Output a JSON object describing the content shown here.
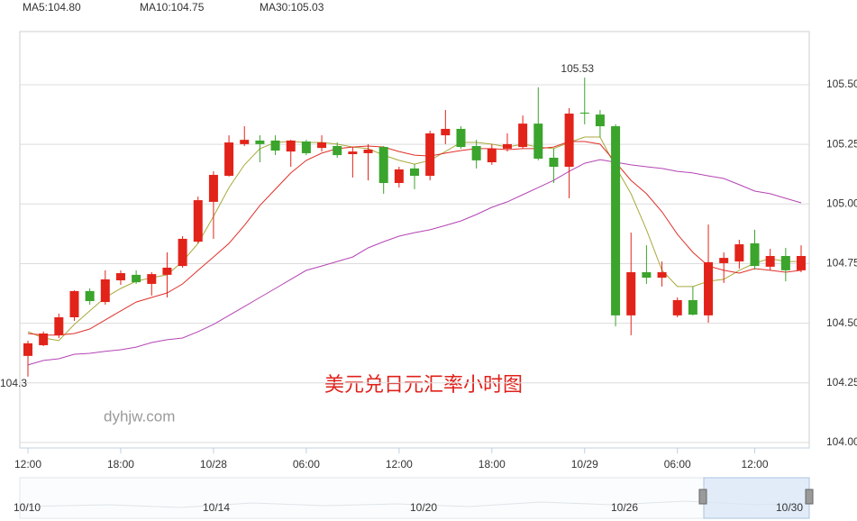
{
  "chart_data": {
    "type": "candlestick",
    "title": "美元兑日元汇率小时图",
    "watermark": "dyhjw.com",
    "up_color": "#e2231a",
    "down_color": "#3ba42c",
    "categories": [
      "12:00",
      null,
      null,
      null,
      null,
      null,
      "18:00",
      null,
      null,
      null,
      null,
      null,
      "10/28",
      null,
      null,
      null,
      null,
      null,
      "06:00",
      null,
      null,
      null,
      null,
      null,
      "12:00",
      null,
      null,
      null,
      null,
      null,
      "18:00",
      null,
      null,
      null,
      null,
      null,
      "10/29",
      null,
      null,
      null,
      null,
      null,
      "06:00",
      null,
      null,
      null,
      null,
      "12:00",
      null,
      null,
      null
    ],
    "open": [
      104.363,
      104.408,
      104.45,
      104.525,
      104.635,
      104.589,
      104.68,
      104.703,
      104.665,
      104.703,
      104.74,
      104.842,
      105.009,
      105.118,
      105.251,
      105.266,
      105.266,
      105.22,
      105.262,
      105.235,
      105.243,
      105.209,
      105.213,
      105.239,
      105.088,
      105.149,
      105.118,
      105.288,
      105.315,
      105.243,
      105.175,
      105.232,
      105.239,
      105.337,
      105.194,
      105.156,
      105.383,
      105.375,
      105.326,
      104.533,
      104.714,
      104.691,
      104.533,
      104.597,
      104.533,
      104.752,
      104.759,
      104.835,
      104.737,
      104.782,
      104.722
    ],
    "close": [
      104.416,
      104.457,
      104.525,
      104.635,
      104.593,
      104.684,
      104.71,
      104.672,
      104.706,
      104.733,
      104.854,
      105.016,
      105.122,
      105.258,
      105.269,
      105.251,
      105.224,
      105.266,
      105.213,
      105.258,
      105.205,
      105.22,
      105.228,
      105.088,
      105.145,
      105.118,
      105.296,
      105.315,
      105.239,
      105.183,
      105.232,
      105.251,
      105.337,
      105.19,
      105.156,
      105.379,
      105.379,
      105.326,
      104.533,
      104.714,
      104.691,
      104.714,
      104.597,
      104.536,
      104.756,
      104.774,
      104.831,
      104.74,
      104.782,
      104.722,
      104.782
    ],
    "high": [
      104.427,
      104.465,
      104.54,
      104.638,
      104.646,
      104.722,
      104.722,
      104.722,
      104.714,
      104.797,
      104.865,
      105.031,
      105.137,
      105.288,
      105.326,
      105.288,
      105.288,
      105.269,
      105.269,
      105.288,
      105.258,
      105.239,
      105.251,
      105.243,
      105.156,
      105.167,
      105.307,
      105.394,
      105.326,
      105.269,
      105.251,
      105.296,
      105.371,
      105.489,
      105.232,
      105.402,
      105.53,
      105.394,
      105.334,
      104.88,
      104.827,
      104.759,
      104.608,
      104.654,
      104.914,
      104.797,
      104.85,
      104.892,
      104.812,
      104.816,
      104.827
    ],
    "low": [
      104.276,
      104.404,
      104.438,
      104.51,
      104.578,
      104.578,
      104.661,
      104.665,
      104.616,
      104.608,
      104.733,
      104.835,
      104.854,
      105.115,
      105.243,
      105.175,
      105.205,
      105.156,
      105.205,
      105.22,
      105.194,
      105.111,
      105.099,
      105.043,
      105.069,
      105.062,
      105.099,
      105.251,
      105.232,
      105.149,
      105.164,
      105.22,
      105.232,
      105.183,
      105.088,
      105.024,
      105.334,
      105.281,
      104.487,
      104.45,
      104.665,
      104.654,
      104.525,
      104.533,
      104.502,
      104.669,
      104.729,
      104.725,
      104.722,
      104.676,
      104.714
    ],
    "extreme_labels": {
      "high": "105.53",
      "low": "104.3"
    },
    "series": [
      {
        "name": "MA5:104.80",
        "color": "#a9a93c",
        "values": [
          104.465,
          104.438,
          104.427,
          104.495,
          104.552,
          104.608,
          104.646,
          104.676,
          104.691,
          104.703,
          104.759,
          104.835,
          104.948,
          105.069,
          105.164,
          105.232,
          105.258,
          105.262,
          105.258,
          105.258,
          105.251,
          105.239,
          105.232,
          105.205,
          105.183,
          105.167,
          105.183,
          105.22,
          105.258,
          105.258,
          105.251,
          105.239,
          105.251,
          105.239,
          105.232,
          105.258,
          105.281,
          105.281,
          105.156,
          105.043,
          104.892,
          104.722,
          104.654,
          104.654,
          104.676,
          104.684,
          104.722,
          104.752,
          104.771,
          104.759,
          104.759
        ]
      },
      {
        "name": "MA10:104.75",
        "color": "#e0302a",
        "values": [
          104.457,
          104.45,
          104.45,
          104.457,
          104.476,
          104.514,
          104.552,
          104.589,
          104.608,
          104.627,
          104.665,
          104.722,
          104.778,
          104.835,
          104.91,
          104.994,
          105.062,
          105.13,
          105.183,
          105.213,
          105.232,
          105.239,
          105.243,
          105.239,
          105.22,
          105.205,
          105.201,
          105.213,
          105.224,
          105.232,
          105.232,
          105.228,
          105.232,
          105.232,
          105.239,
          105.262,
          105.262,
          105.251,
          105.175,
          105.099,
          105.043,
          104.967,
          104.873,
          104.797,
          104.74,
          104.722,
          104.71,
          104.729,
          104.722,
          104.714,
          104.722
        ]
      },
      {
        "name": "MA30:105.03",
        "color": "#b444b4",
        "values": [
          104.325,
          104.344,
          104.351,
          104.37,
          104.374,
          104.382,
          104.389,
          104.4,
          104.419,
          104.431,
          104.438,
          104.465,
          104.495,
          104.533,
          104.57,
          104.608,
          104.646,
          104.684,
          104.722,
          104.74,
          104.759,
          104.778,
          104.816,
          104.842,
          104.865,
          104.88,
          104.892,
          104.91,
          104.929,
          104.956,
          104.986,
          105.009,
          105.039,
          105.069,
          105.099,
          105.137,
          105.171,
          105.186,
          105.175,
          105.164,
          105.156,
          105.149,
          105.137,
          105.13,
          105.118,
          105.107,
          105.081,
          105.054,
          105.043,
          105.024,
          105.005
        ]
      }
    ],
    "ylim": [
      103.977,
      105.723
    ],
    "yticks": [
      {
        "value": 104,
        "label": "104.00"
      },
      {
        "value": 104.25,
        "label": "104.25"
      },
      {
        "value": 104.5,
        "label": "104.50"
      },
      {
        "value": 104.75,
        "label": "104.75"
      },
      {
        "value": 105,
        "label": "105.00"
      },
      {
        "value": 105.25,
        "label": "105.25"
      },
      {
        "value": 105.5,
        "label": "105.50"
      }
    ],
    "grid": true,
    "navigator": {
      "labels": [
        "10/10",
        "10/14",
        "10/20",
        "10/26",
        "10/30"
      ]
    }
  }
}
